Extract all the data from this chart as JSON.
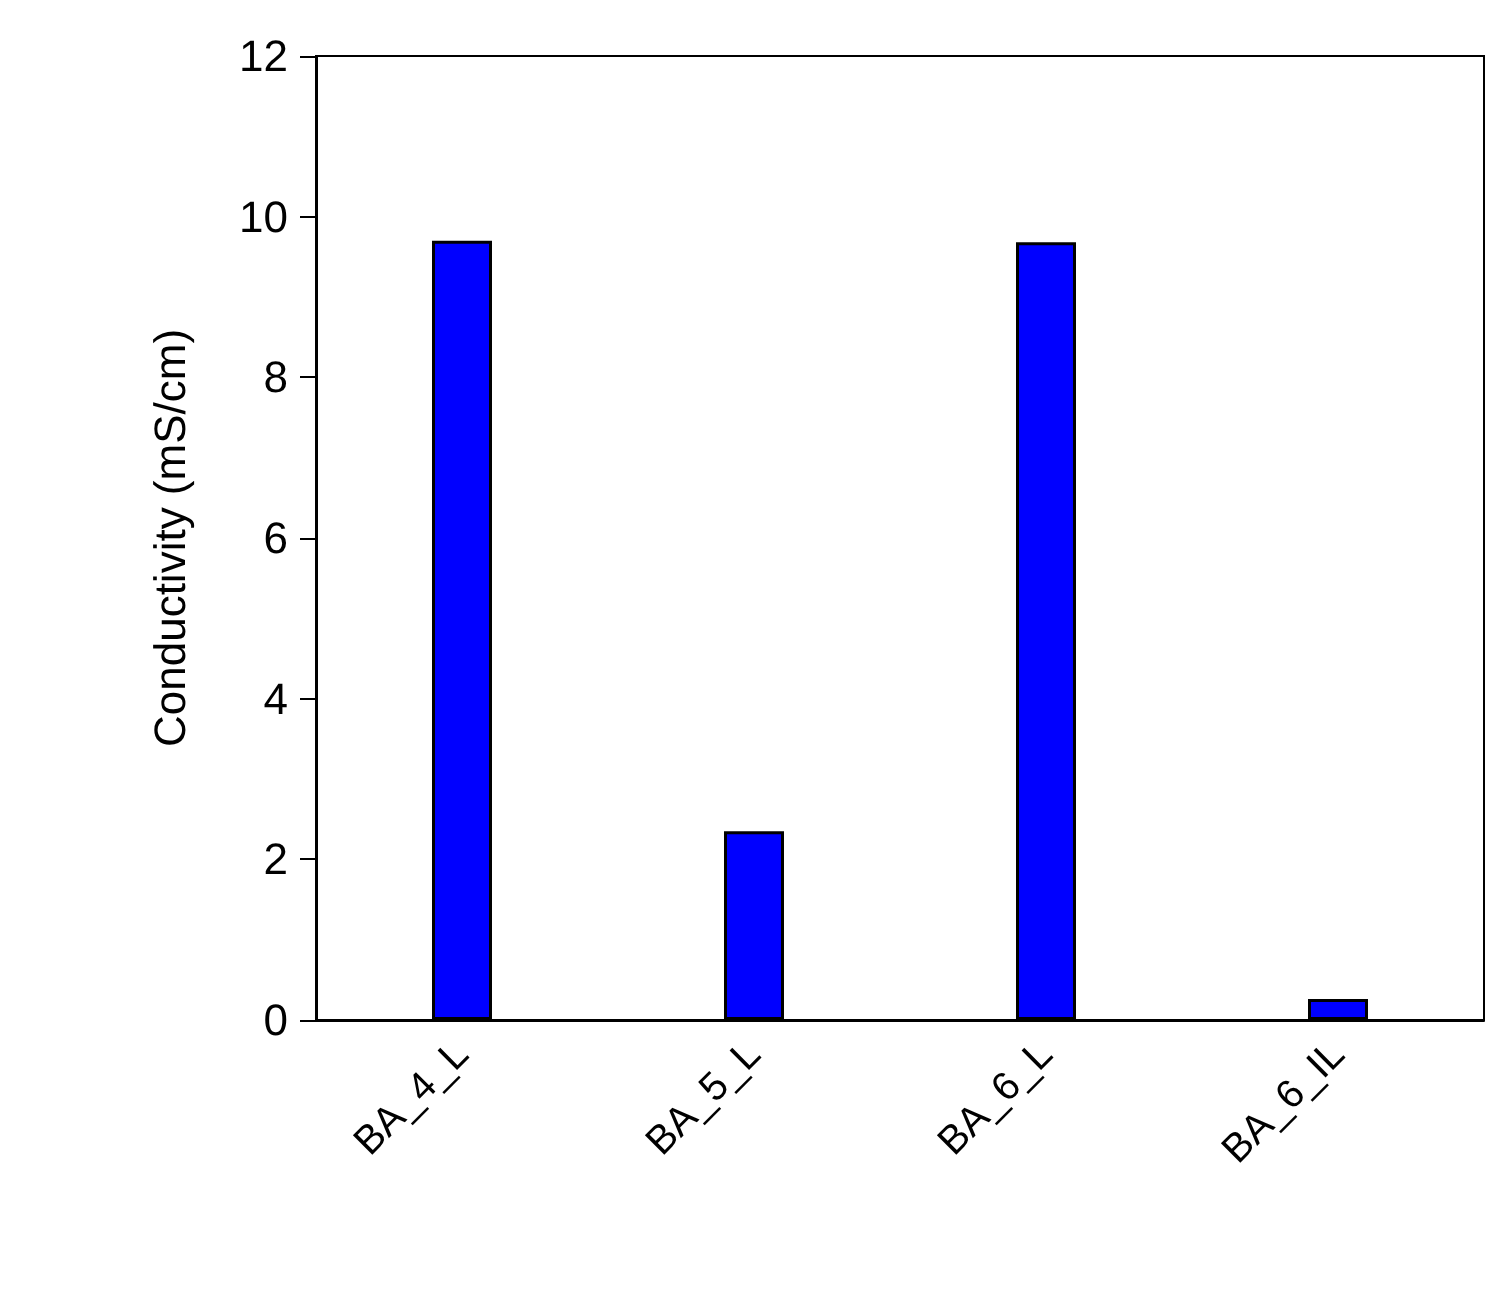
{
  "chart_data": {
    "type": "bar",
    "ylabel": "Conductivity (mS/cm)",
    "categories": [
      "BA_4_L",
      "BA_5_L",
      "BA_6_L",
      "BA_6_IL"
    ],
    "values": [
      9.7,
      2.35,
      9.68,
      0.26
    ],
    "color": "#0000ff",
    "ylim": [
      0,
      12
    ],
    "yticks": [
      0,
      2,
      4,
      6,
      8,
      10,
      12
    ],
    "grid": false
  }
}
